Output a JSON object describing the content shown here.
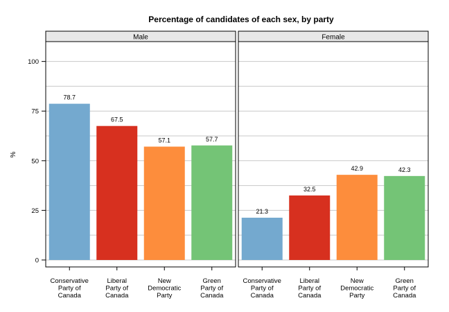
{
  "chart_data": {
    "type": "bar",
    "title": "Percentage of candidates of each sex, by party",
    "ylabel": "%",
    "xlabel": "",
    "ylim": [
      -3.5,
      110
    ],
    "yticks": [
      0,
      25,
      50,
      75,
      100
    ],
    "grid": true,
    "categories": [
      "Conservative Party of Canada",
      "Liberal Party of Canada",
      "New Democratic Party",
      "Green Party of Canada"
    ],
    "category_lines": [
      [
        "Conservative",
        "Party of",
        "Canada"
      ],
      [
        "Liberal",
        "Party of",
        "Canada"
      ],
      [
        "New",
        "Democratic",
        "Party"
      ],
      [
        "Green",
        "Party of",
        "Canada"
      ]
    ],
    "colors": [
      "#74a9cf",
      "#d7301f",
      "#fd8d3c",
      "#74c476"
    ],
    "panels": [
      {
        "name": "Male",
        "values": [
          78.7,
          67.5,
          57.1,
          57.7
        ],
        "labels": [
          "78.7",
          "67.5",
          "57.1",
          "57.7"
        ]
      },
      {
        "name": "Female",
        "values": [
          21.3,
          32.5,
          42.9,
          42.3
        ],
        "labels": [
          "21.3",
          "32.5",
          "42.9",
          "42.3"
        ]
      }
    ]
  }
}
